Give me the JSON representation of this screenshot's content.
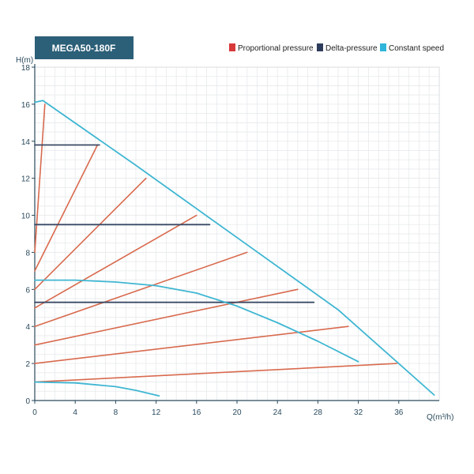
{
  "chart_data": {
    "type": "line",
    "title": "MEGA50-180F",
    "xlabel": "Q(m³/h)",
    "ylabel": "H(m)",
    "xlim": [
      0,
      40
    ],
    "ylim": [
      0,
      18
    ],
    "xticks": [
      0,
      4,
      8,
      12,
      16,
      20,
      24,
      28,
      32,
      36
    ],
    "yticks": [
      0,
      2,
      4,
      6,
      8,
      10,
      12,
      14,
      16,
      18
    ],
    "grid": true,
    "legend": {
      "placement": "top-right",
      "items": [
        {
          "label": "Proportional pressure",
          "color": "#d8393a"
        },
        {
          "label": "Delta-pressure",
          "color": "#2e3c5c"
        },
        {
          "label": "Constant speed",
          "color": "#2fb5d9"
        }
      ]
    },
    "colors": {
      "proportional": "#d86a4e",
      "delta": "#3a4a66",
      "constant": "#3fb6d2",
      "title_bg": "#2c5f78"
    },
    "series": [
      {
        "group": "constant",
        "points": [
          [
            0,
            16.1
          ],
          [
            0.8,
            16.2
          ],
          [
            10,
            12.7
          ],
          [
            20,
            8.8
          ],
          [
            30,
            4.9
          ],
          [
            39.5,
            0.3
          ]
        ]
      },
      {
        "group": "constant",
        "points": [
          [
            0,
            6.5
          ],
          [
            4,
            6.5
          ],
          [
            8,
            6.4
          ],
          [
            12,
            6.2
          ],
          [
            16,
            5.8
          ],
          [
            20,
            5.1
          ],
          [
            24,
            4.2
          ],
          [
            28,
            3.2
          ],
          [
            32,
            2.1
          ]
        ]
      },
      {
        "group": "constant",
        "points": [
          [
            0,
            1.0
          ],
          [
            4,
            0.95
          ],
          [
            8,
            0.75
          ],
          [
            10,
            0.55
          ],
          [
            12.3,
            0.25
          ]
        ]
      },
      {
        "group": "delta",
        "points": [
          [
            0,
            13.8
          ],
          [
            6.4,
            13.8
          ]
        ]
      },
      {
        "group": "delta",
        "points": [
          [
            0,
            9.5
          ],
          [
            17.3,
            9.5
          ]
        ]
      },
      {
        "group": "delta",
        "points": [
          [
            0,
            5.3
          ],
          [
            27.6,
            5.3
          ]
        ]
      },
      {
        "group": "proportional",
        "points": [
          [
            0,
            8.0
          ],
          [
            1.0,
            16.0
          ]
        ]
      },
      {
        "group": "proportional",
        "points": [
          [
            0,
            7.0
          ],
          [
            6.2,
            13.8
          ]
        ]
      },
      {
        "group": "proportional",
        "points": [
          [
            0,
            6.0
          ],
          [
            11.0,
            12.0
          ]
        ]
      },
      {
        "group": "proportional",
        "points": [
          [
            0,
            5.0
          ],
          [
            16.0,
            10.0
          ]
        ]
      },
      {
        "group": "proportional",
        "points": [
          [
            0,
            4.0
          ],
          [
            21.0,
            8.0
          ]
        ]
      },
      {
        "group": "proportional",
        "points": [
          [
            0,
            3.0
          ],
          [
            26.0,
            6.0
          ]
        ]
      },
      {
        "group": "proportional",
        "points": [
          [
            0,
            2.0
          ],
          [
            31.0,
            4.0
          ]
        ]
      },
      {
        "group": "proportional",
        "points": [
          [
            0,
            1.0
          ],
          [
            35.8,
            2.0
          ]
        ]
      }
    ]
  }
}
